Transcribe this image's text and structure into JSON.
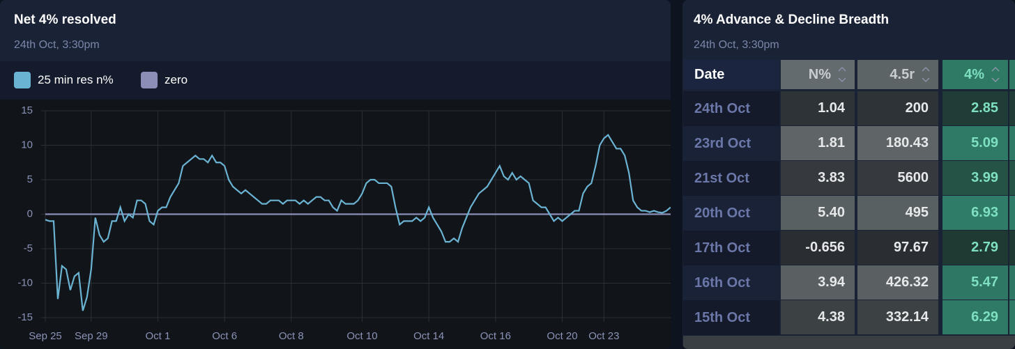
{
  "left_panel": {
    "title": "Net 4% resolved",
    "subtitle": "24th Oct, 3:30pm"
  },
  "chart_data": {
    "type": "line",
    "series": [
      {
        "name": "25 min res n%",
        "color": "#6bb3d3",
        "values": [
          -0.8,
          -1,
          -1,
          -12.3,
          -7.5,
          -8,
          -11,
          -9,
          -8.5,
          -14,
          -12,
          -8,
          -0.5,
          -3,
          -4,
          -3.5,
          -1,
          -1,
          1,
          -1,
          0,
          -0.5,
          2,
          2,
          1.5,
          -1,
          -1.5,
          0.5,
          1,
          1,
          2.5,
          3.5,
          4.5,
          7,
          7.5,
          8,
          8.5,
          8,
          8,
          7.5,
          8.5,
          7.5,
          7.5,
          7,
          5,
          4,
          3.5,
          3,
          3.5,
          3,
          2.5,
          2,
          1.5,
          1.5,
          2,
          2,
          2,
          1.5,
          2,
          2,
          2,
          1.5,
          2,
          1.5,
          2,
          2.5,
          2.5,
          2,
          2,
          1,
          0.5,
          2,
          1.5,
          1.5,
          1.5,
          2,
          3,
          4.5,
          5,
          5,
          4.5,
          4.5,
          4.5,
          4,
          1,
          -1.5,
          -1,
          -1,
          -1,
          -0.5,
          -1,
          -0.5,
          1,
          -0.5,
          -1.5,
          -2.5,
          -4,
          -4,
          -3.5,
          -4,
          -2,
          -0.5,
          1,
          2,
          3,
          3.5,
          4,
          5,
          6,
          7,
          5.5,
          5,
          6,
          5,
          5.5,
          5,
          4.5,
          2,
          1.5,
          1,
          1,
          0,
          -1,
          -0.5,
          -1,
          -0.5,
          0,
          0.5,
          0.5,
          3,
          4,
          4.5,
          7,
          10,
          11,
          11.5,
          10.5,
          9.5,
          9.5,
          8.5,
          6,
          2,
          1,
          0.5,
          0.5,
          0.3,
          0.5,
          0.3,
          0.2,
          0.5,
          1
        ]
      },
      {
        "name": "zero",
        "color": "#8b8fb8",
        "values": [
          0,
          0,
          0,
          0,
          0,
          0,
          0,
          0,
          0,
          0,
          0,
          0,
          0,
          0,
          0,
          0,
          0,
          0,
          0,
          0,
          0,
          0,
          0,
          0,
          0,
          0,
          0,
          0,
          0,
          0,
          0,
          0,
          0,
          0,
          0,
          0,
          0,
          0,
          0,
          0,
          0,
          0,
          0,
          0,
          0,
          0,
          0,
          0,
          0,
          0,
          0,
          0,
          0,
          0,
          0,
          0,
          0,
          0,
          0,
          0,
          0,
          0,
          0,
          0,
          0,
          0,
          0,
          0,
          0,
          0,
          0,
          0,
          0,
          0,
          0,
          0,
          0,
          0,
          0,
          0,
          0,
          0,
          0,
          0,
          0,
          0,
          0,
          0,
          0,
          0,
          0,
          0,
          0,
          0,
          0,
          0,
          0,
          0,
          0,
          0,
          0,
          0,
          0,
          0,
          0,
          0,
          0,
          0,
          0,
          0,
          0,
          0,
          0,
          0,
          0,
          0,
          0,
          0,
          0,
          0,
          0,
          0,
          0,
          0,
          0,
          0,
          0,
          0,
          0,
          0,
          0,
          0,
          0,
          0,
          0,
          0,
          0,
          0,
          0,
          0,
          0,
          0,
          0,
          0,
          0,
          0,
          0,
          0,
          0,
          0,
          0
        ]
      }
    ],
    "xlim": [
      0,
      150
    ],
    "xticks": [
      {
        "value": 0,
        "label": "Sep 25"
      },
      {
        "value": 11,
        "label": "Sep 29"
      },
      {
        "value": 27,
        "label": "Oct 1"
      },
      {
        "value": 43,
        "label": "Oct 6"
      },
      {
        "value": 59,
        "label": "Oct 8"
      },
      {
        "value": 76,
        "label": "Oct 10"
      },
      {
        "value": 92,
        "label": "Oct 14"
      },
      {
        "value": 108,
        "label": "Oct 16"
      },
      {
        "value": 124,
        "label": "Oct 20"
      },
      {
        "value": 134,
        "label": "Oct 23"
      }
    ],
    "ylim": [
      -15,
      15
    ],
    "yticks": [
      -15,
      -10,
      -5,
      0,
      5,
      10,
      15
    ],
    "grid": true
  },
  "table_panel": {
    "title": "4% Advance & Decline Breadth",
    "subtitle": "24th Oct, 3:30pm",
    "columns": [
      "Date",
      "N%",
      "4.5r",
      "4%"
    ],
    "rows": [
      [
        "24th Oct",
        "1.04",
        "200",
        "2.85"
      ],
      [
        "23rd Oct",
        "1.81",
        "180.43",
        "5.09"
      ],
      [
        "21st Oct",
        "3.83",
        "5600",
        "3.99"
      ],
      [
        "20th Oct",
        "5.40",
        "495",
        "6.93"
      ],
      [
        "17th Oct",
        "-0.656",
        "97.67",
        "2.79"
      ],
      [
        "16th Oct",
        "3.94",
        "426.32",
        "5.47"
      ],
      [
        "15th Oct",
        "4.38",
        "332.14",
        "6.29"
      ]
    ]
  }
}
